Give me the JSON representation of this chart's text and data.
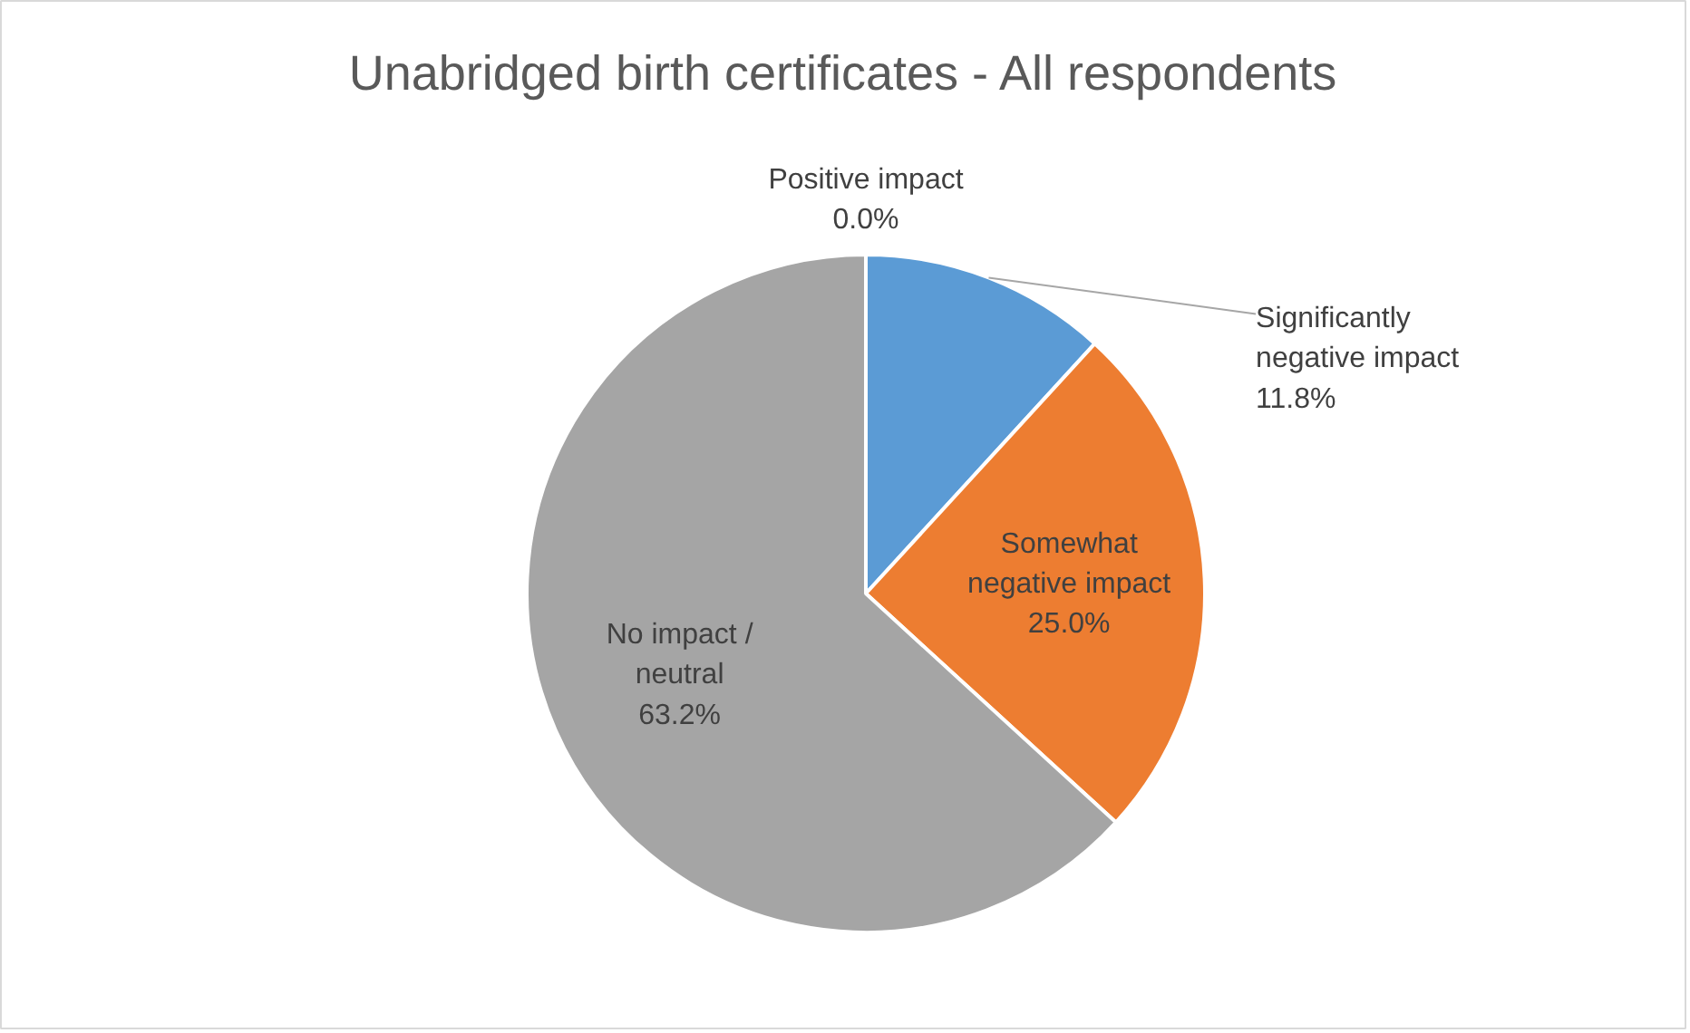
{
  "chart_data": {
    "type": "pie",
    "title": "Unabridged birth certificates - All respondents",
    "categories": [
      "Positive impact",
      "Significantly negative impact",
      "Somewhat negative impact",
      "No impact / neutral"
    ],
    "values": [
      0.0,
      11.8,
      25.0,
      63.2
    ],
    "colors": [
      "#ffc000",
      "#5b9bd5",
      "#ed7d31",
      "#a5a5a5"
    ],
    "value_labels": [
      "0.0%",
      "11.8%",
      "25.0%",
      "63.2%"
    ]
  }
}
